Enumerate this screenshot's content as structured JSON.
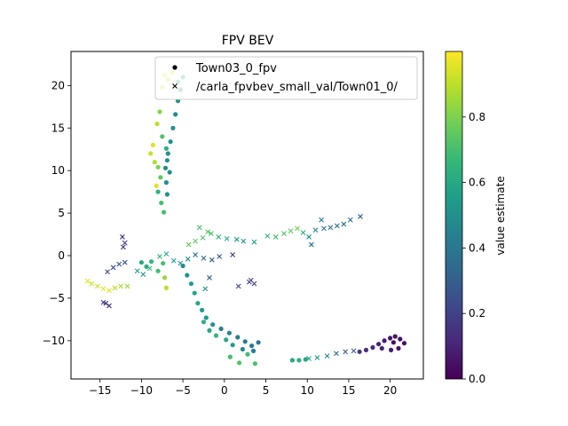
{
  "chart_data": {
    "type": "scatter",
    "title": "FPV BEV",
    "xlabel": "",
    "ylabel": "",
    "xlim": [
      -18.5,
      24
    ],
    "ylim": [
      -14.5,
      24
    ],
    "xticks": [
      -15,
      -10,
      -5,
      0,
      5,
      10,
      15,
      20
    ],
    "yticks": [
      -10,
      -5,
      0,
      5,
      10,
      15,
      20
    ],
    "xtick_labels": [
      "−15",
      "−10",
      "−5",
      "0",
      "5",
      "10",
      "15",
      "20"
    ],
    "ytick_labels": [
      "−10",
      "−5",
      "0",
      "5",
      "10",
      "15",
      "20"
    ],
    "grid": false,
    "legend_position": "top-right",
    "legend": [
      {
        "label": "Town03_0_fpv",
        "marker": "circle"
      },
      {
        "label": "/carla_fpvbev_small_val/Town01_0/",
        "marker": "x"
      }
    ],
    "colorbar": {
      "label": "value estimate",
      "range": [
        0.0,
        1.0
      ],
      "ticks": [
        0.0,
        0.2,
        0.4,
        0.6,
        0.8
      ],
      "tick_labels": [
        "0.0",
        "0.2",
        "0.4",
        "0.6",
        "0.8"
      ],
      "colormap": "viridis"
    },
    "colormap_stops": [
      "#440154",
      "#482878",
      "#3e4989",
      "#31688e",
      "#26828e",
      "#1f9e89",
      "#35b779",
      "#6ece58",
      "#b5de2b",
      "#fde725"
    ],
    "series": [
      {
        "name": "Town03_0_fpv",
        "marker": "circle",
        "points": [
          {
            "x": -7.2,
            "y": 21.2,
            "v": 0.95
          },
          {
            "x": -6.8,
            "y": 20.7,
            "v": 0.93
          },
          {
            "x": -6.3,
            "y": 21.5,
            "v": 0.96
          },
          {
            "x": -7.5,
            "y": 19.8,
            "v": 0.9
          },
          {
            "x": -5.6,
            "y": 20.4,
            "v": 0.55
          },
          {
            "x": -5.3,
            "y": 19.5,
            "v": 0.5
          },
          {
            "x": -5.0,
            "y": 21.0,
            "v": 0.55
          },
          {
            "x": -5.6,
            "y": 18.2,
            "v": 0.5
          },
          {
            "x": -5.9,
            "y": 16.6,
            "v": 0.48
          },
          {
            "x": -6.2,
            "y": 15.0,
            "v": 0.5
          },
          {
            "x": -6.5,
            "y": 13.4,
            "v": 0.52
          },
          {
            "x": -6.8,
            "y": 12.0,
            "v": 0.5
          },
          {
            "x": -7.1,
            "y": 10.3,
            "v": 0.48
          },
          {
            "x": -7.0,
            "y": 8.6,
            "v": 0.5
          },
          {
            "x": -6.9,
            "y": 7.2,
            "v": 0.5
          },
          {
            "x": -6.6,
            "y": 9.8,
            "v": 0.52
          },
          {
            "x": -6.9,
            "y": 11.2,
            "v": 0.5
          },
          {
            "x": -7.8,
            "y": 16.9,
            "v": 0.82
          },
          {
            "x": -8.1,
            "y": 15.5,
            "v": 0.9
          },
          {
            "x": -8.6,
            "y": 13.0,
            "v": 0.95
          },
          {
            "x": -8.9,
            "y": 12.0,
            "v": 0.92
          },
          {
            "x": -8.4,
            "y": 11.0,
            "v": 0.88
          },
          {
            "x": -8.0,
            "y": 10.4,
            "v": 0.8
          },
          {
            "x": -7.7,
            "y": 9.2,
            "v": 0.75
          },
          {
            "x": -8.2,
            "y": 8.2,
            "v": 0.95
          },
          {
            "x": -8.0,
            "y": 7.5,
            "v": 0.65
          },
          {
            "x": -7.6,
            "y": 6.2,
            "v": 0.7
          },
          {
            "x": -7.3,
            "y": 5.1,
            "v": 0.7
          },
          {
            "x": -7.5,
            "y": 14.0,
            "v": 0.72
          },
          {
            "x": -7.0,
            "y": 12.6,
            "v": 0.62
          },
          {
            "x": -10.0,
            "y": -0.8,
            "v": 0.6
          },
          {
            "x": -9.4,
            "y": -1.3,
            "v": 0.62
          },
          {
            "x": -8.8,
            "y": -0.7,
            "v": 0.66
          },
          {
            "x": -8.0,
            "y": -1.8,
            "v": 0.7
          },
          {
            "x": -7.4,
            "y": -0.9,
            "v": 0.7
          },
          {
            "x": -7.0,
            "y": -3.8,
            "v": 0.9
          },
          {
            "x": -7.2,
            "y": -2.6,
            "v": 0.85
          },
          {
            "x": -5.0,
            "y": -1.2,
            "v": 0.5
          },
          {
            "x": -4.5,
            "y": -2.3,
            "v": 0.52
          },
          {
            "x": -4.0,
            "y": -3.3,
            "v": 0.56
          },
          {
            "x": -3.6,
            "y": -4.4,
            "v": 0.6
          },
          {
            "x": -3.2,
            "y": -5.6,
            "v": 0.58
          },
          {
            "x": -2.7,
            "y": -6.4,
            "v": 0.55
          },
          {
            "x": -2.2,
            "y": -7.3,
            "v": 0.55
          },
          {
            "x": -1.4,
            "y": -8.1,
            "v": 0.5
          },
          {
            "x": -0.4,
            "y": -8.6,
            "v": 0.45
          },
          {
            "x": 0.6,
            "y": -9.1,
            "v": 0.45
          },
          {
            "x": 1.6,
            "y": -9.6,
            "v": 0.43
          },
          {
            "x": 2.5,
            "y": -10.1,
            "v": 0.42
          },
          {
            "x": 3.3,
            "y": -10.6,
            "v": 0.42
          },
          {
            "x": 4.1,
            "y": -10.2,
            "v": 0.4
          },
          {
            "x": 3.5,
            "y": -11.2,
            "v": 0.44
          },
          {
            "x": 2.2,
            "y": -11.0,
            "v": 0.48
          },
          {
            "x": 1.0,
            "y": -10.5,
            "v": 0.55
          },
          {
            "x": 0.2,
            "y": -9.9,
            "v": 0.6
          },
          {
            "x": -1.0,
            "y": -9.4,
            "v": 0.66
          },
          {
            "x": 0.7,
            "y": -11.9,
            "v": 0.7
          },
          {
            "x": 1.8,
            "y": -12.6,
            "v": 0.72
          },
          {
            "x": 3.7,
            "y": -12.7,
            "v": 0.7
          },
          {
            "x": 2.8,
            "y": -11.6,
            "v": 0.68
          },
          {
            "x": -2.5,
            "y": -7.8,
            "v": 0.62
          },
          {
            "x": -1.8,
            "y": -8.8,
            "v": 0.6
          },
          {
            "x": 8.2,
            "y": -12.3,
            "v": 0.6
          },
          {
            "x": 9.0,
            "y": -12.3,
            "v": 0.62
          },
          {
            "x": 9.8,
            "y": -12.2,
            "v": 0.6
          },
          {
            "x": 16.3,
            "y": -11.3,
            "v": 0.16
          },
          {
            "x": 17.1,
            "y": -11.1,
            "v": 0.15
          },
          {
            "x": 17.9,
            "y": -10.8,
            "v": 0.12
          },
          {
            "x": 18.6,
            "y": -10.4,
            "v": 0.1
          },
          {
            "x": 19.3,
            "y": -10.0,
            "v": 0.08
          },
          {
            "x": 20.0,
            "y": -9.7,
            "v": 0.06
          },
          {
            "x": 20.6,
            "y": -9.5,
            "v": 0.05
          },
          {
            "x": 21.2,
            "y": -9.8,
            "v": 0.05
          },
          {
            "x": 21.7,
            "y": -10.3,
            "v": 0.05
          },
          {
            "x": 21.0,
            "y": -10.9,
            "v": 0.06
          },
          {
            "x": 20.1,
            "y": -11.1,
            "v": 0.08
          },
          {
            "x": 19.0,
            "y": -10.9,
            "v": 0.1
          },
          {
            "x": 20.4,
            "y": -10.2,
            "v": 0.04
          }
        ]
      },
      {
        "name": "/carla_fpvbev_small_val/Town01_0/",
        "marker": "x",
        "points": [
          {
            "x": -16.5,
            "y": -3.0,
            "v": 0.95
          },
          {
            "x": -16.0,
            "y": -3.3,
            "v": 0.92
          },
          {
            "x": -15.3,
            "y": -3.6,
            "v": 0.92
          },
          {
            "x": -14.6,
            "y": -3.9,
            "v": 0.95
          },
          {
            "x": -13.9,
            "y": -4.1,
            "v": 0.95
          },
          {
            "x": -13.2,
            "y": -3.8,
            "v": 0.9
          },
          {
            "x": -12.5,
            "y": -3.6,
            "v": 0.88
          },
          {
            "x": -11.7,
            "y": -3.6,
            "v": 0.85
          },
          {
            "x": -14.3,
            "y": -5.6,
            "v": 0.15
          },
          {
            "x": -13.9,
            "y": -5.9,
            "v": 0.15
          },
          {
            "x": -14.6,
            "y": -5.5,
            "v": 0.18
          },
          {
            "x": -14.1,
            "y": -1.9,
            "v": 0.2
          },
          {
            "x": -13.4,
            "y": -1.4,
            "v": 0.22
          },
          {
            "x": -12.7,
            "y": -1.0,
            "v": 0.25
          },
          {
            "x": -12.0,
            "y": -0.8,
            "v": 0.28
          },
          {
            "x": -12.3,
            "y": 2.2,
            "v": 0.15
          },
          {
            "x": -12.0,
            "y": 1.5,
            "v": 0.18
          },
          {
            "x": -12.2,
            "y": 1.0,
            "v": 0.2
          },
          {
            "x": -10.5,
            "y": -1.8,
            "v": 0.55
          },
          {
            "x": -9.8,
            "y": -2.2,
            "v": 0.5
          },
          {
            "x": -9.0,
            "y": -1.5,
            "v": 0.65
          },
          {
            "x": -7.8,
            "y": -0.1,
            "v": 0.65
          },
          {
            "x": -7.0,
            "y": 0.2,
            "v": 0.6
          },
          {
            "x": -6.1,
            "y": -0.6,
            "v": 0.55
          },
          {
            "x": -5.3,
            "y": -0.9,
            "v": 0.5
          },
          {
            "x": -4.4,
            "y": -0.4,
            "v": 0.45
          },
          {
            "x": -3.5,
            "y": 0.1,
            "v": 0.4
          },
          {
            "x": -2.5,
            "y": -0.3,
            "v": 0.35
          },
          {
            "x": -1.5,
            "y": -0.5,
            "v": 0.3
          },
          {
            "x": -0.6,
            "y": -0.1,
            "v": 0.25
          },
          {
            "x": -1.8,
            "y": -2.6,
            "v": 0.3
          },
          {
            "x": -2.3,
            "y": -3.9,
            "v": 0.5
          },
          {
            "x": -4.3,
            "y": 1.3,
            "v": 0.78
          },
          {
            "x": -3.5,
            "y": 1.7,
            "v": 0.75
          },
          {
            "x": -2.6,
            "y": 2.1,
            "v": 0.72
          },
          {
            "x": -1.6,
            "y": 2.6,
            "v": 0.7
          },
          {
            "x": -0.7,
            "y": 2.2,
            "v": 0.65
          },
          {
            "x": 0.3,
            "y": 2.0,
            "v": 0.6
          },
          {
            "x": -3.0,
            "y": 3.3,
            "v": 0.7
          },
          {
            "x": -2.0,
            "y": 2.8,
            "v": 0.75
          },
          {
            "x": 1.5,
            "y": 1.9,
            "v": 0.55
          },
          {
            "x": 2.3,
            "y": 1.7,
            "v": 0.5
          },
          {
            "x": 3.6,
            "y": 1.6,
            "v": 0.58
          },
          {
            "x": 1.0,
            "y": 0.1,
            "v": 0.2
          },
          {
            "x": 5.2,
            "y": 2.3,
            "v": 0.65
          },
          {
            "x": 6.2,
            "y": 2.2,
            "v": 0.7
          },
          {
            "x": 7.2,
            "y": 2.6,
            "v": 0.72
          },
          {
            "x": 8.0,
            "y": 2.9,
            "v": 0.75
          },
          {
            "x": 8.8,
            "y": 3.2,
            "v": 0.78
          },
          {
            "x": 9.5,
            "y": 2.7,
            "v": 0.6
          },
          {
            "x": 10.2,
            "y": 2.2,
            "v": 0.5
          },
          {
            "x": 11.0,
            "y": 3.0,
            "v": 0.45
          },
          {
            "x": 12.0,
            "y": 3.2,
            "v": 0.4
          },
          {
            "x": 12.8,
            "y": 3.3,
            "v": 0.38
          },
          {
            "x": 13.6,
            "y": 3.5,
            "v": 0.36
          },
          {
            "x": 14.4,
            "y": 3.7,
            "v": 0.35
          },
          {
            "x": 15.2,
            "y": 4.2,
            "v": 0.33
          },
          {
            "x": 16.4,
            "y": 4.6,
            "v": 0.3
          },
          {
            "x": 10.5,
            "y": 1.3,
            "v": 0.35
          },
          {
            "x": 11.7,
            "y": 4.2,
            "v": 0.4
          },
          {
            "x": 3.0,
            "y": -3.1,
            "v": 0.2
          },
          {
            "x": 3.6,
            "y": -3.3,
            "v": 0.18
          },
          {
            "x": 1.7,
            "y": -3.6,
            "v": 0.2
          },
          {
            "x": 3.2,
            "y": -2.9,
            "v": 0.22
          },
          {
            "x": 10.2,
            "y": -12.1,
            "v": 0.6
          },
          {
            "x": 11.2,
            "y": -12.0,
            "v": 0.55
          },
          {
            "x": 12.4,
            "y": -11.8,
            "v": 0.45
          },
          {
            "x": 13.5,
            "y": -11.5,
            "v": 0.35
          },
          {
            "x": 14.6,
            "y": -11.3,
            "v": 0.3
          },
          {
            "x": 15.6,
            "y": -11.2,
            "v": 0.28
          }
        ]
      }
    ]
  }
}
